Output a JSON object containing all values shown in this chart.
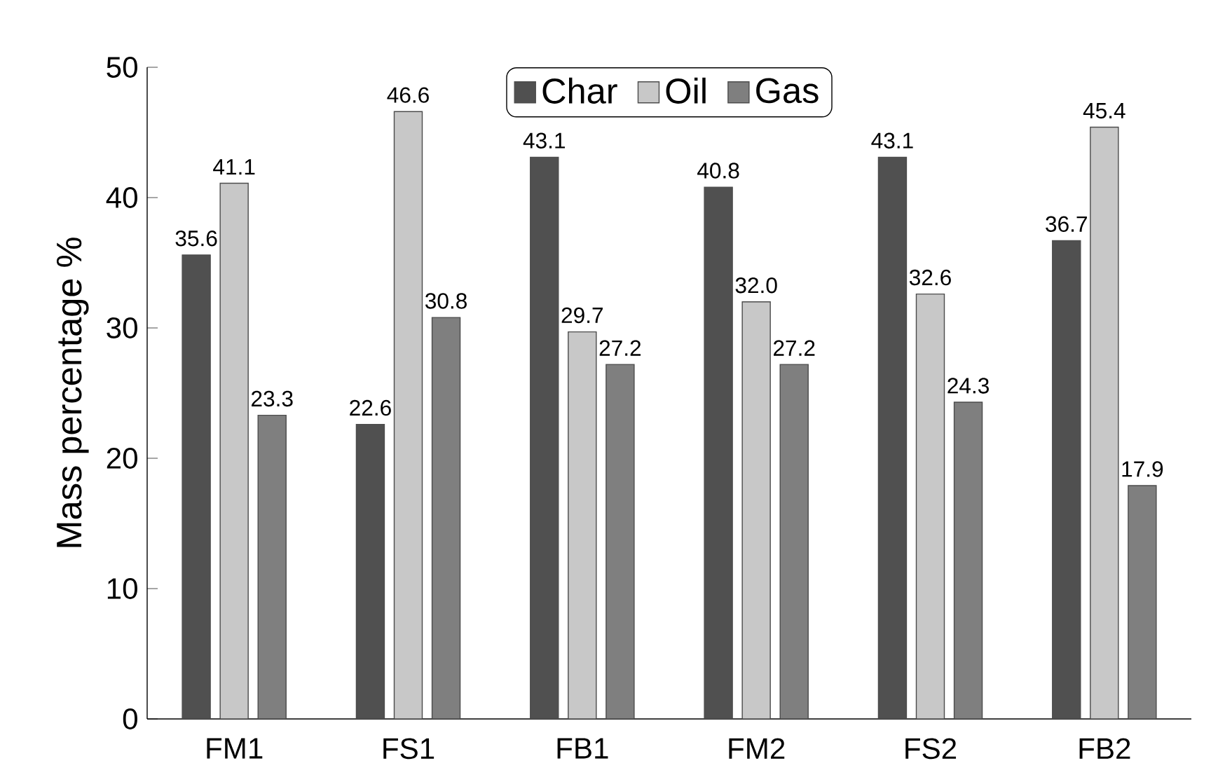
{
  "chart_data": {
    "type": "bar",
    "ylabel": "Mass percentage %",
    "categories": [
      "FM1",
      "FS1",
      "FB1",
      "FM2",
      "FS2",
      "FB2"
    ],
    "series": [
      {
        "name": "Char",
        "color": "#505050",
        "values": [
          35.6,
          22.6,
          43.1,
          40.8,
          43.1,
          36.7
        ],
        "value_labels": [
          "35.6",
          "22.6",
          "43.1",
          "40.8",
          "43.1",
          "36.7"
        ]
      },
      {
        "name": "Oil",
        "color": "#c8c8c8",
        "values": [
          41.1,
          46.6,
          29.7,
          32.0,
          32.6,
          45.4
        ],
        "value_labels": [
          "41.1",
          "46.6",
          "29.7",
          "32.0",
          "32.6",
          "45.4"
        ]
      },
      {
        "name": "Gas",
        "color": "#7f7f7f",
        "values": [
          23.3,
          30.8,
          27.2,
          27.2,
          24.3,
          17.9
        ],
        "value_labels": [
          "23.3",
          "30.8",
          "27.2",
          "27.2",
          "24.3",
          "17.9"
        ]
      }
    ],
    "ylim": [
      0,
      50
    ],
    "yticks": [
      0,
      10,
      20,
      30,
      40,
      50
    ],
    "legend": "top",
    "grid": false
  }
}
